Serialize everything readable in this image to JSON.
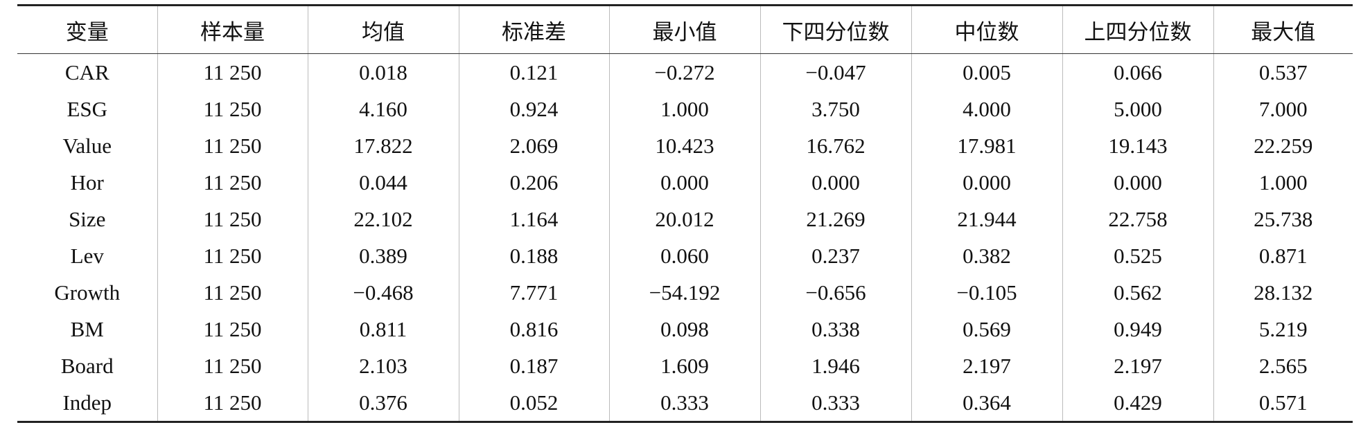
{
  "table": {
    "header": [
      "变量",
      "样本量",
      "均值",
      "标准差",
      "最小值",
      "下四分位数",
      "中位数",
      "上四分位数",
      "最大值"
    ],
    "rows": [
      [
        "CAR",
        "11 250",
        "0.018",
        "0.121",
        "−0.272",
        "−0.047",
        "0.005",
        "0.066",
        "0.537"
      ],
      [
        "ESG",
        "11 250",
        "4.160",
        "0.924",
        "1.000",
        "3.750",
        "4.000",
        "5.000",
        "7.000"
      ],
      [
        "Value",
        "11 250",
        "17.822",
        "2.069",
        "10.423",
        "16.762",
        "17.981",
        "19.143",
        "22.259"
      ],
      [
        "Hor",
        "11 250",
        "0.044",
        "0.206",
        "0.000",
        "0.000",
        "0.000",
        "0.000",
        "1.000"
      ],
      [
        "Size",
        "11 250",
        "22.102",
        "1.164",
        "20.012",
        "21.269",
        "21.944",
        "22.758",
        "25.738"
      ],
      [
        "Lev",
        "11 250",
        "0.389",
        "0.188",
        "0.060",
        "0.237",
        "0.382",
        "0.525",
        "0.871"
      ],
      [
        "Growth",
        "11 250",
        "−0.468",
        "7.771",
        "−54.192",
        "−0.656",
        "−0.105",
        "0.562",
        "28.132"
      ],
      [
        "BM",
        "11 250",
        "0.811",
        "0.816",
        "0.098",
        "0.338",
        "0.569",
        "0.949",
        "5.219"
      ],
      [
        "Board",
        "11 250",
        "2.103",
        "0.187",
        "1.609",
        "1.946",
        "2.197",
        "2.197",
        "2.565"
      ],
      [
        "Indep",
        "11 250",
        "0.376",
        "0.052",
        "0.333",
        "0.333",
        "0.364",
        "0.429",
        "0.571"
      ]
    ]
  }
}
